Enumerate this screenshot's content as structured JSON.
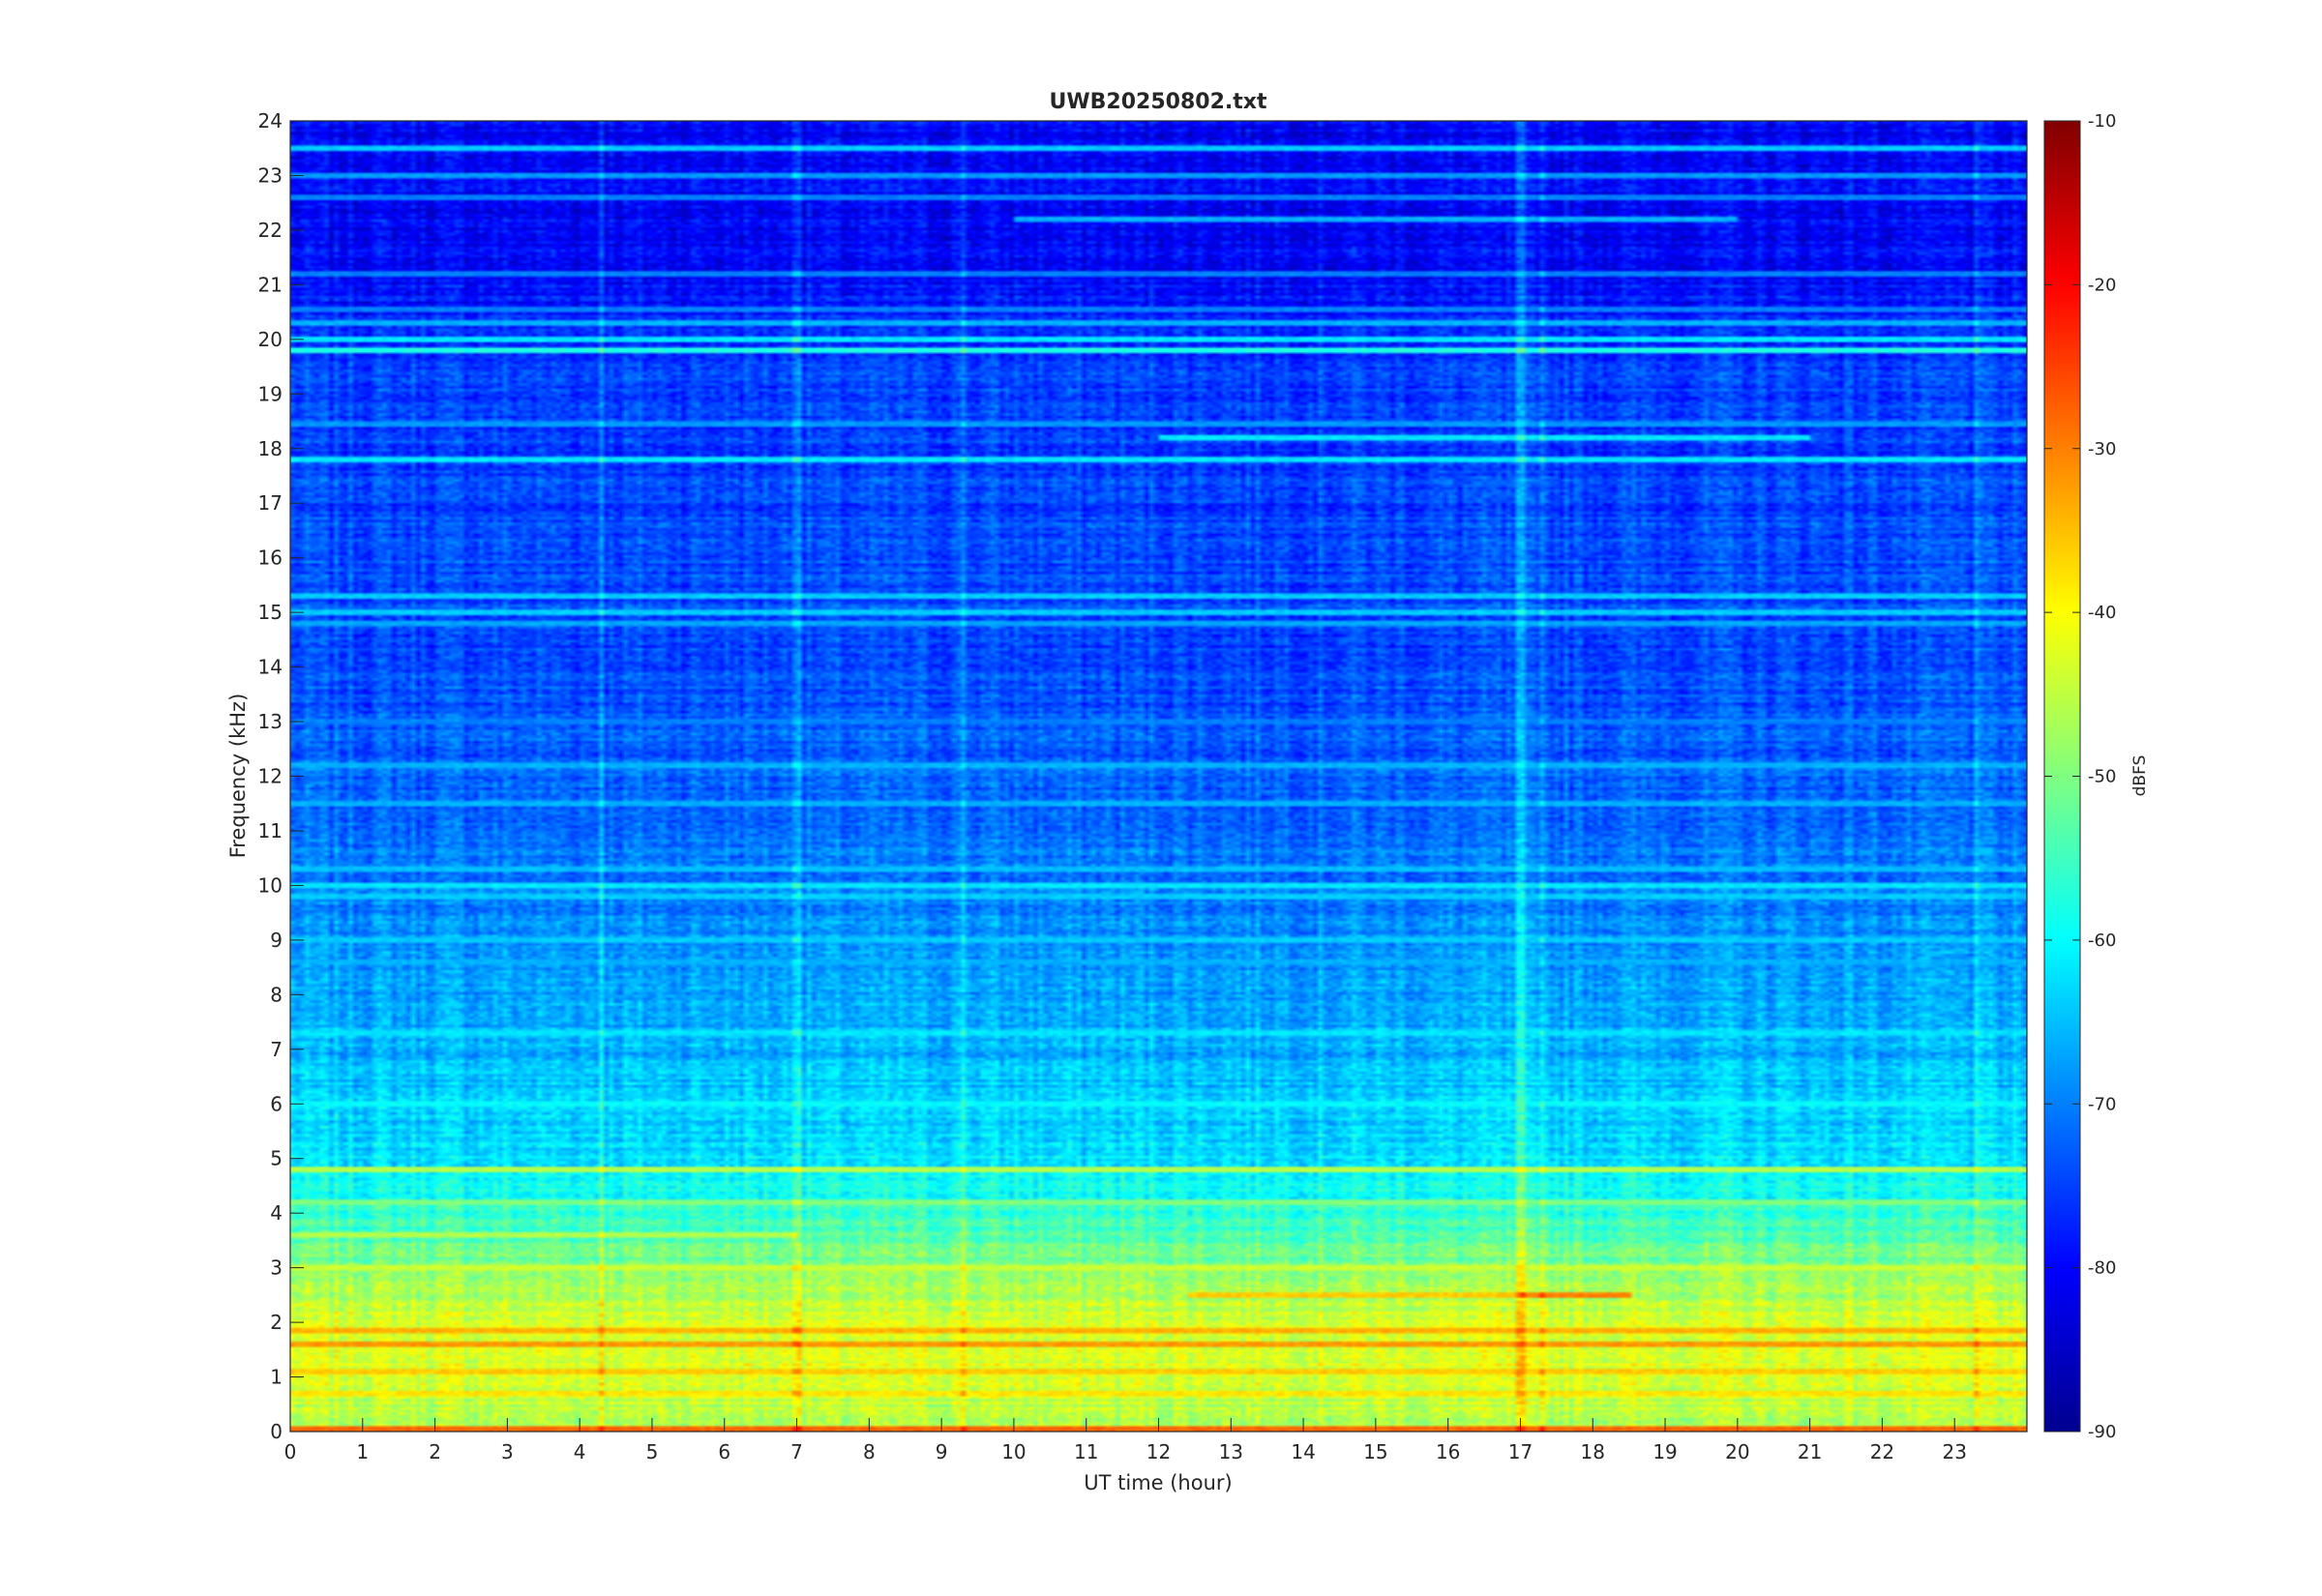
{
  "chart_data": {
    "type": "heatmap",
    "title": "UWB20250802.txt",
    "xlabel": "UT time (hour)",
    "ylabel": "Frequency (kHz)",
    "colorbar_label": "dBFS",
    "colormap": "jet",
    "xlim": [
      0,
      24
    ],
    "ylim": [
      0,
      24
    ],
    "clim": [
      -90,
      -10
    ],
    "x_ticks": [
      0,
      1,
      2,
      3,
      4,
      5,
      6,
      7,
      8,
      9,
      10,
      11,
      12,
      13,
      14,
      15,
      16,
      17,
      18,
      19,
      20,
      21,
      22,
      23
    ],
    "y_ticks": [
      0,
      1,
      2,
      3,
      4,
      5,
      6,
      7,
      8,
      9,
      10,
      11,
      12,
      13,
      14,
      15,
      16,
      17,
      18,
      19,
      20,
      21,
      22,
      23,
      24
    ],
    "colorbar_ticks": [
      -90,
      -80,
      -70,
      -60,
      -50,
      -40,
      -30,
      -20,
      -10
    ],
    "background_profile": [
      {
        "freq_khz": 0.0,
        "dbfs": -48
      },
      {
        "freq_khz": 0.5,
        "dbfs": -45
      },
      {
        "freq_khz": 1.0,
        "dbfs": -43
      },
      {
        "freq_khz": 1.5,
        "dbfs": -41
      },
      {
        "freq_khz": 2.0,
        "dbfs": -43
      },
      {
        "freq_khz": 2.5,
        "dbfs": -46
      },
      {
        "freq_khz": 3.0,
        "dbfs": -50
      },
      {
        "freq_khz": 3.5,
        "dbfs": -53
      },
      {
        "freq_khz": 4.0,
        "dbfs": -56
      },
      {
        "freq_khz": 4.5,
        "dbfs": -59
      },
      {
        "freq_khz": 5.0,
        "dbfs": -62
      },
      {
        "freq_khz": 6.0,
        "dbfs": -64
      },
      {
        "freq_khz": 7.0,
        "dbfs": -66
      },
      {
        "freq_khz": 8.0,
        "dbfs": -67
      },
      {
        "freq_khz": 9.0,
        "dbfs": -68
      },
      {
        "freq_khz": 10.0,
        "dbfs": -70
      },
      {
        "freq_khz": 12.0,
        "dbfs": -72
      },
      {
        "freq_khz": 14.0,
        "dbfs": -74
      },
      {
        "freq_khz": 16.0,
        "dbfs": -74
      },
      {
        "freq_khz": 18.0,
        "dbfs": -75
      },
      {
        "freq_khz": 19.5,
        "dbfs": -75
      },
      {
        "freq_khz": 20.5,
        "dbfs": -78
      },
      {
        "freq_khz": 22.0,
        "dbfs": -80
      },
      {
        "freq_khz": 24.0,
        "dbfs": -80
      }
    ],
    "tone_lines": [
      {
        "freq_khz": 23.5,
        "dbfs": -64,
        "t_start": 0,
        "t_end": 24
      },
      {
        "freq_khz": 23.0,
        "dbfs": -68,
        "t_start": 0,
        "t_end": 24
      },
      {
        "freq_khz": 22.6,
        "dbfs": -70,
        "t_start": 0,
        "t_end": 24
      },
      {
        "freq_khz": 22.2,
        "dbfs": -66,
        "t_start": 10,
        "t_end": 20
      },
      {
        "freq_khz": 21.2,
        "dbfs": -70,
        "t_start": 0,
        "t_end": 24
      },
      {
        "freq_khz": 20.55,
        "dbfs": -70,
        "t_start": 0,
        "t_end": 24
      },
      {
        "freq_khz": 20.3,
        "dbfs": -66,
        "t_start": 0,
        "t_end": 24
      },
      {
        "freq_khz": 20.0,
        "dbfs": -62,
        "t_start": 0,
        "t_end": 24
      },
      {
        "freq_khz": 19.8,
        "dbfs": -58,
        "t_start": 0,
        "t_end": 24
      },
      {
        "freq_khz": 18.45,
        "dbfs": -68,
        "t_start": 0,
        "t_end": 24
      },
      {
        "freq_khz": 18.2,
        "dbfs": -62,
        "t_start": 12,
        "t_end": 21
      },
      {
        "freq_khz": 17.8,
        "dbfs": -62,
        "t_start": 0,
        "t_end": 24
      },
      {
        "freq_khz": 15.3,
        "dbfs": -64,
        "t_start": 0,
        "t_end": 24
      },
      {
        "freq_khz": 15.0,
        "dbfs": -64,
        "t_start": 0,
        "t_end": 24
      },
      {
        "freq_khz": 14.8,
        "dbfs": -67,
        "t_start": 0,
        "t_end": 24
      },
      {
        "freq_khz": 13.0,
        "dbfs": -70,
        "t_start": 0,
        "t_end": 24
      },
      {
        "freq_khz": 12.2,
        "dbfs": -66,
        "t_start": 0,
        "t_end": 24
      },
      {
        "freq_khz": 11.5,
        "dbfs": -66,
        "t_start": 0,
        "t_end": 24
      },
      {
        "freq_khz": 10.3,
        "dbfs": -65,
        "t_start": 0,
        "t_end": 24
      },
      {
        "freq_khz": 10.0,
        "dbfs": -62,
        "t_start": 0,
        "t_end": 24
      },
      {
        "freq_khz": 9.8,
        "dbfs": -64,
        "t_start": 0,
        "t_end": 24
      },
      {
        "freq_khz": 9.0,
        "dbfs": -64,
        "t_start": 0,
        "t_end": 24
      },
      {
        "freq_khz": 8.6,
        "dbfs": -66,
        "t_start": 0,
        "t_end": 24
      },
      {
        "freq_khz": 7.3,
        "dbfs": -62,
        "t_start": 0,
        "t_end": 24
      },
      {
        "freq_khz": 6.0,
        "dbfs": -60,
        "t_start": 0,
        "t_end": 24
      },
      {
        "freq_khz": 4.8,
        "dbfs": -46,
        "t_start": 0,
        "t_end": 24
      },
      {
        "freq_khz": 4.2,
        "dbfs": -50,
        "t_start": 0,
        "t_end": 24
      },
      {
        "freq_khz": 3.6,
        "dbfs": -46,
        "t_start": 0,
        "t_end": 7
      },
      {
        "freq_khz": 3.0,
        "dbfs": -44,
        "t_start": 0,
        "t_end": 24
      },
      {
        "freq_khz": 2.5,
        "dbfs": -36,
        "t_start": 12.4,
        "t_end": 18.5
      },
      {
        "freq_khz": 2.5,
        "dbfs": -30,
        "t_start": 17,
        "t_end": 18.5
      },
      {
        "freq_khz": 1.85,
        "dbfs": -34,
        "t_start": 0,
        "t_end": 24
      },
      {
        "freq_khz": 1.6,
        "dbfs": -32,
        "t_start": 0,
        "t_end": 24
      },
      {
        "freq_khz": 1.1,
        "dbfs": -36,
        "t_start": 0,
        "t_end": 24
      },
      {
        "freq_khz": 0.7,
        "dbfs": -38,
        "t_start": 0,
        "t_end": 24
      },
      {
        "freq_khz": 0.05,
        "dbfs": -28,
        "t_start": 0,
        "t_end": 24
      }
    ],
    "broadband_bursts_hours": [
      4.3,
      9.3,
      7.0,
      17.0,
      17.3,
      23.3
    ]
  }
}
